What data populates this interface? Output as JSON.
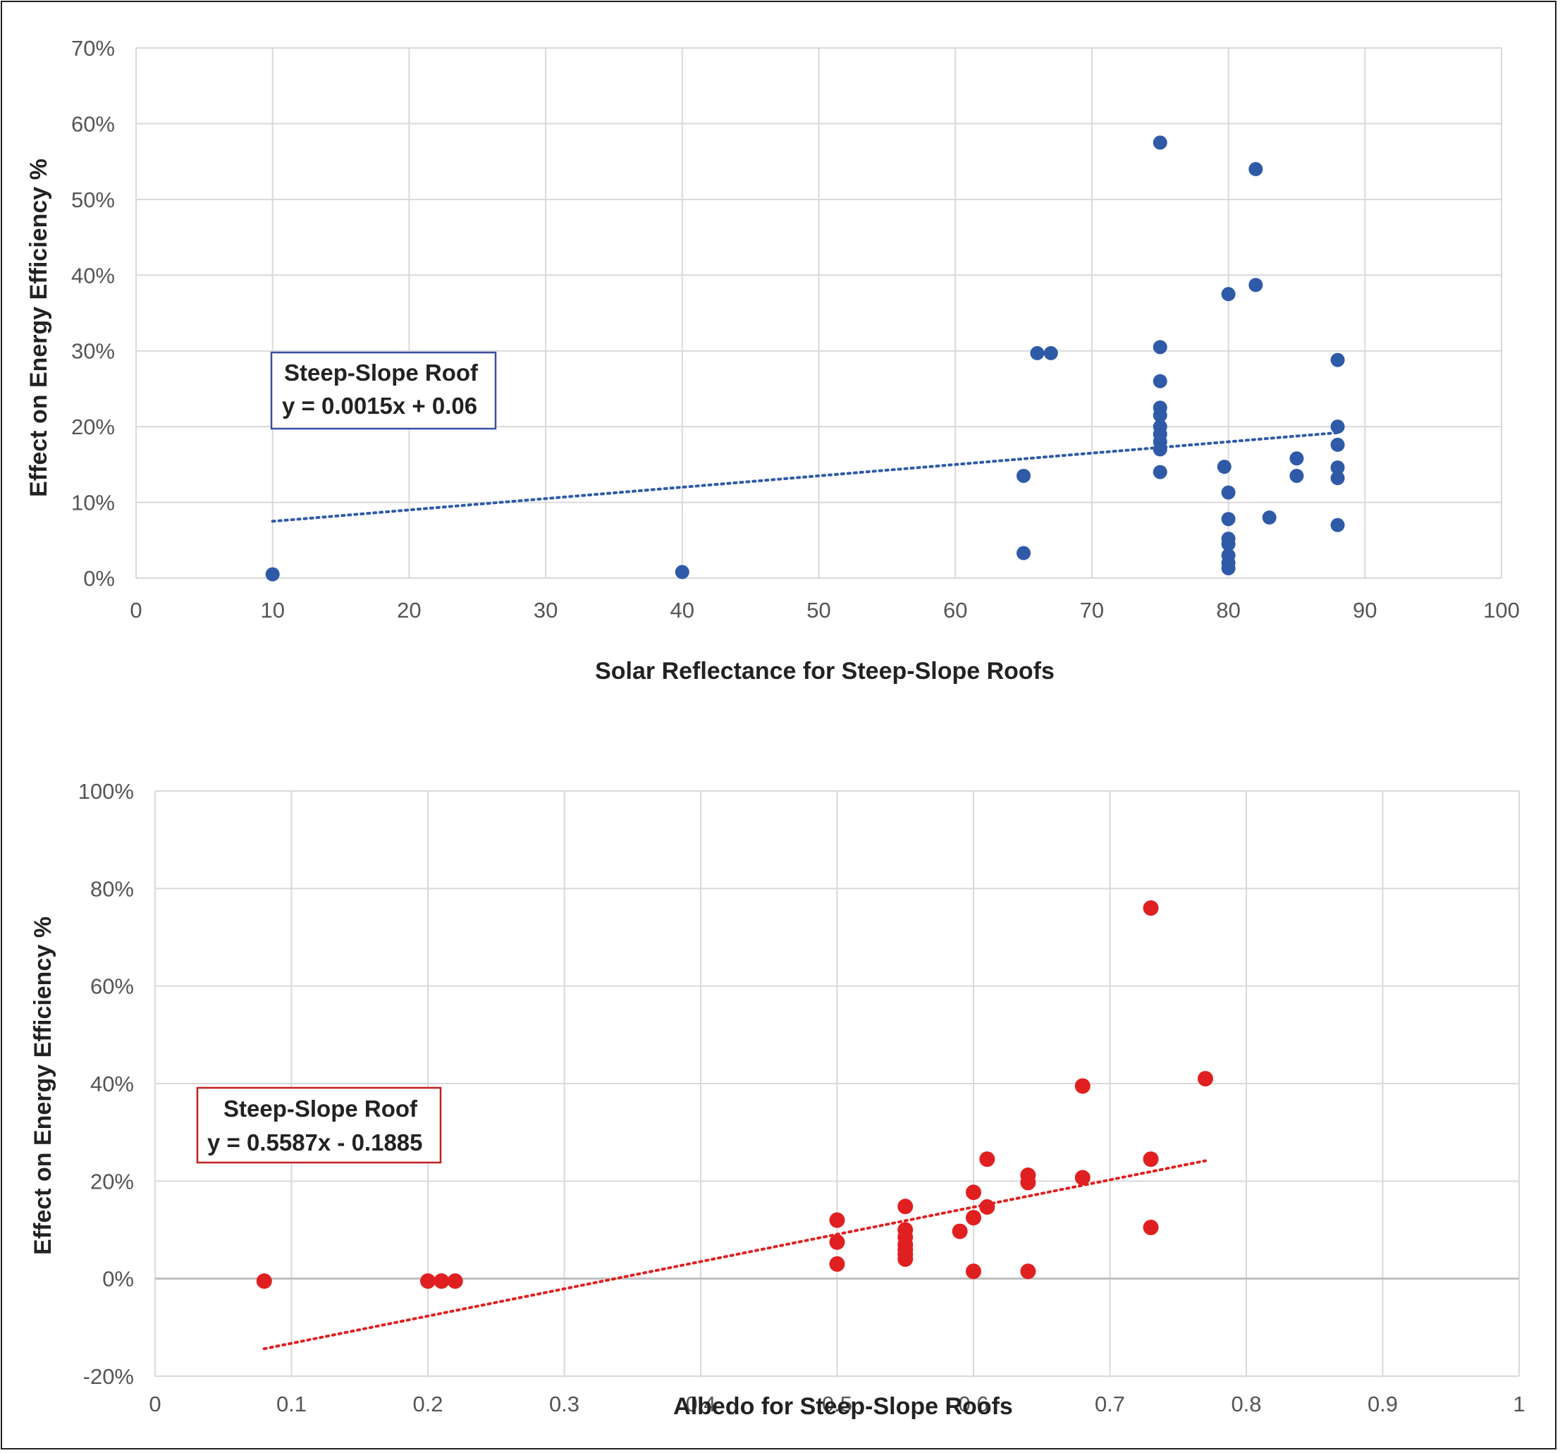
{
  "chart_data": [
    {
      "type": "scatter",
      "xlabel": "Solar Reflectance for Steep-Slope Roofs",
      "ylabel": "Effect on Energy Efficiency %",
      "xlim": [
        0,
        100
      ],
      "ylim": [
        0,
        0.7
      ],
      "x_ticks": [
        "0",
        "10",
        "20",
        "30",
        "40",
        "50",
        "60",
        "70",
        "80",
        "90",
        "100"
      ],
      "y_ticks": [
        "0%",
        "10%",
        "20%",
        "30%",
        "40%",
        "50%",
        "60%",
        "70%"
      ],
      "grid": true,
      "color": "#2e5aa8",
      "annotation": {
        "title": "Steep-Slope Roof",
        "equation": "y = 0.0015x + 0.06",
        "border_color": "#3a4fa0"
      },
      "trendline": {
        "slope": 0.0015,
        "intercept": 0.06,
        "x_range": [
          10,
          88
        ]
      },
      "series": [
        {
          "points": [
            [
              10,
              0.005
            ],
            [
              40,
              0.008
            ],
            [
              65,
              0.135
            ],
            [
              65,
              0.033
            ],
            [
              66,
              0.297
            ],
            [
              67,
              0.297
            ],
            [
              75,
              0.575
            ],
            [
              75,
              0.305
            ],
            [
              75,
              0.26
            ],
            [
              75,
              0.225
            ],
            [
              75,
              0.215
            ],
            [
              75,
              0.2
            ],
            [
              75,
              0.19
            ],
            [
              75,
              0.18
            ],
            [
              75,
              0.17
            ],
            [
              75,
              0.14
            ],
            [
              79.7,
              0.147
            ],
            [
              80,
              0.375
            ],
            [
              80,
              0.113
            ],
            [
              80,
              0.078
            ],
            [
              80,
              0.052
            ],
            [
              80,
              0.045
            ],
            [
              80,
              0.03
            ],
            [
              80,
              0.02
            ],
            [
              80,
              0.013
            ],
            [
              82,
              0.54
            ],
            [
              82,
              0.387
            ],
            [
              83,
              0.08
            ],
            [
              85,
              0.158
            ],
            [
              85,
              0.135
            ],
            [
              88,
              0.288
            ],
            [
              88,
              0.2
            ],
            [
              88,
              0.176
            ],
            [
              88,
              0.146
            ],
            [
              88,
              0.132
            ],
            [
              88,
              0.07
            ]
          ]
        }
      ]
    },
    {
      "type": "scatter",
      "xlabel": "Albedo for Steep-Slope Roofs",
      "ylabel": "Effect on Energy Efficiency %",
      "xlim": [
        0,
        1
      ],
      "ylim": [
        -0.2,
        1.0
      ],
      "x_ticks": [
        "0",
        "0.1",
        "0.2",
        "0.3",
        "0.4",
        "0.5",
        "0.6",
        "0.7",
        "0.8",
        "0.9",
        "1"
      ],
      "y_ticks": [
        "-20%",
        "0%",
        "20%",
        "40%",
        "60%",
        "80%",
        "100%"
      ],
      "grid": true,
      "color": "#e02020",
      "annotation": {
        "title": "Steep-Slope Roof",
        "equation": "y = 0.5587x - 0.1885",
        "border_color": "#c02020"
      },
      "trendline": {
        "slope": 0.5587,
        "intercept": -0.1885,
        "x_range": [
          0.08,
          0.77
        ]
      },
      "series": [
        {
          "points": [
            [
              0.08,
              -0.005
            ],
            [
              0.2,
              -0.005
            ],
            [
              0.21,
              -0.005
            ],
            [
              0.22,
              -0.005
            ],
            [
              0.5,
              0.12
            ],
            [
              0.5,
              0.075
            ],
            [
              0.5,
              0.03
            ],
            [
              0.55,
              0.148
            ],
            [
              0.55,
              0.1
            ],
            [
              0.55,
              0.085
            ],
            [
              0.55,
              0.07
            ],
            [
              0.55,
              0.06
            ],
            [
              0.55,
              0.05
            ],
            [
              0.55,
              0.04
            ],
            [
              0.59,
              0.097
            ],
            [
              0.6,
              0.177
            ],
            [
              0.6,
              0.125
            ],
            [
              0.6,
              0.015
            ],
            [
              0.61,
              0.245
            ],
            [
              0.61,
              0.147
            ],
            [
              0.64,
              0.212
            ],
            [
              0.64,
              0.197
            ],
            [
              0.64,
              0.015
            ],
            [
              0.68,
              0.395
            ],
            [
              0.68,
              0.207
            ],
            [
              0.73,
              0.76
            ],
            [
              0.73,
              0.245
            ],
            [
              0.73,
              0.105
            ],
            [
              0.77,
              0.41
            ]
          ]
        }
      ]
    }
  ]
}
